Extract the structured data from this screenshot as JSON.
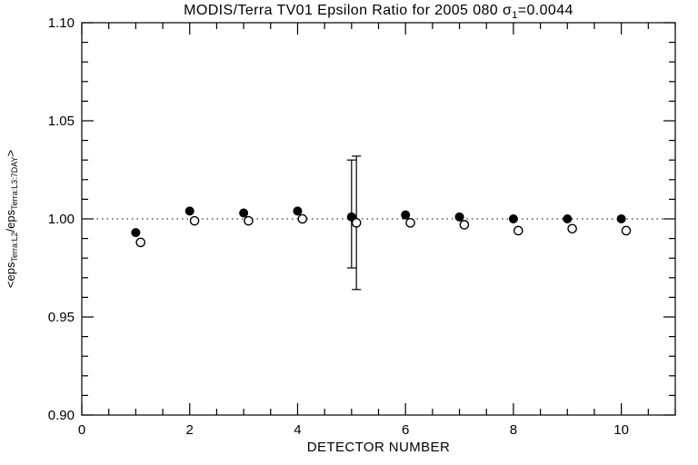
{
  "window": {
    "background": "#ffffff"
  },
  "chart_data": {
    "type": "scatter",
    "title": "MODIS/Terra TV01 Epsilon Ratio for 2005 080 σ1=0.0044",
    "title_parts": [
      {
        "text": "MODIS/Terra TV01 Epsilon Ratio for 2005 080 σ"
      },
      {
        "text": "1",
        "sub": true
      },
      {
        "text": "=0.0044"
      }
    ],
    "xlabel": "DETECTOR NUMBER",
    "ylabel": "<eps_Terra:L2/eps_Terra:L3:7DAY>",
    "ylabel_parts": [
      {
        "text": "<eps"
      },
      {
        "text": "Terra:L2",
        "sub": true
      },
      {
        "text": "/eps"
      },
      {
        "text": "Terra:L3:7DAY",
        "sub": true
      },
      {
        "text": ">"
      }
    ],
    "xlim": [
      0,
      11
    ],
    "ylim": [
      0.9,
      1.1
    ],
    "x_major_ticks": [
      0,
      2,
      4,
      6,
      8,
      10
    ],
    "x_tick_labels": [
      "0",
      "2",
      "4",
      "6",
      "8",
      "10"
    ],
    "x_minor_step": 0.5,
    "y_major_ticks": [
      0.9,
      0.95,
      1.0,
      1.05,
      1.1
    ],
    "y_tick_labels": [
      "0.90",
      "0.95",
      "1.00",
      "1.05",
      "1.10"
    ],
    "y_minor_step": 0.01,
    "grid": false,
    "reference_line": {
      "y": 1.0,
      "style": "dotted"
    },
    "x": [
      1,
      2,
      3,
      4,
      5,
      6,
      7,
      8,
      9,
      10
    ],
    "series": [
      {
        "name": "filled-circles",
        "marker": "filled-circle",
        "x_offset": 0,
        "values": [
          0.993,
          1.004,
          1.003,
          1.004,
          1.001,
          1.002,
          1.001,
          1.0,
          1.0,
          1.0
        ],
        "error_bars": [
          {
            "x": 5,
            "low": 0.975,
            "high": 1.03
          }
        ]
      },
      {
        "name": "open-circles",
        "marker": "open-circle",
        "x_offset": 0.09,
        "values": [
          0.988,
          0.999,
          0.999,
          1.0,
          0.998,
          0.998,
          0.997,
          0.994,
          0.995,
          0.994
        ],
        "error_bars": [
          {
            "x": 5,
            "low": 0.964,
            "high": 1.032
          }
        ]
      }
    ],
    "colors": {
      "foreground": "#000000",
      "background": "#ffffff"
    }
  }
}
